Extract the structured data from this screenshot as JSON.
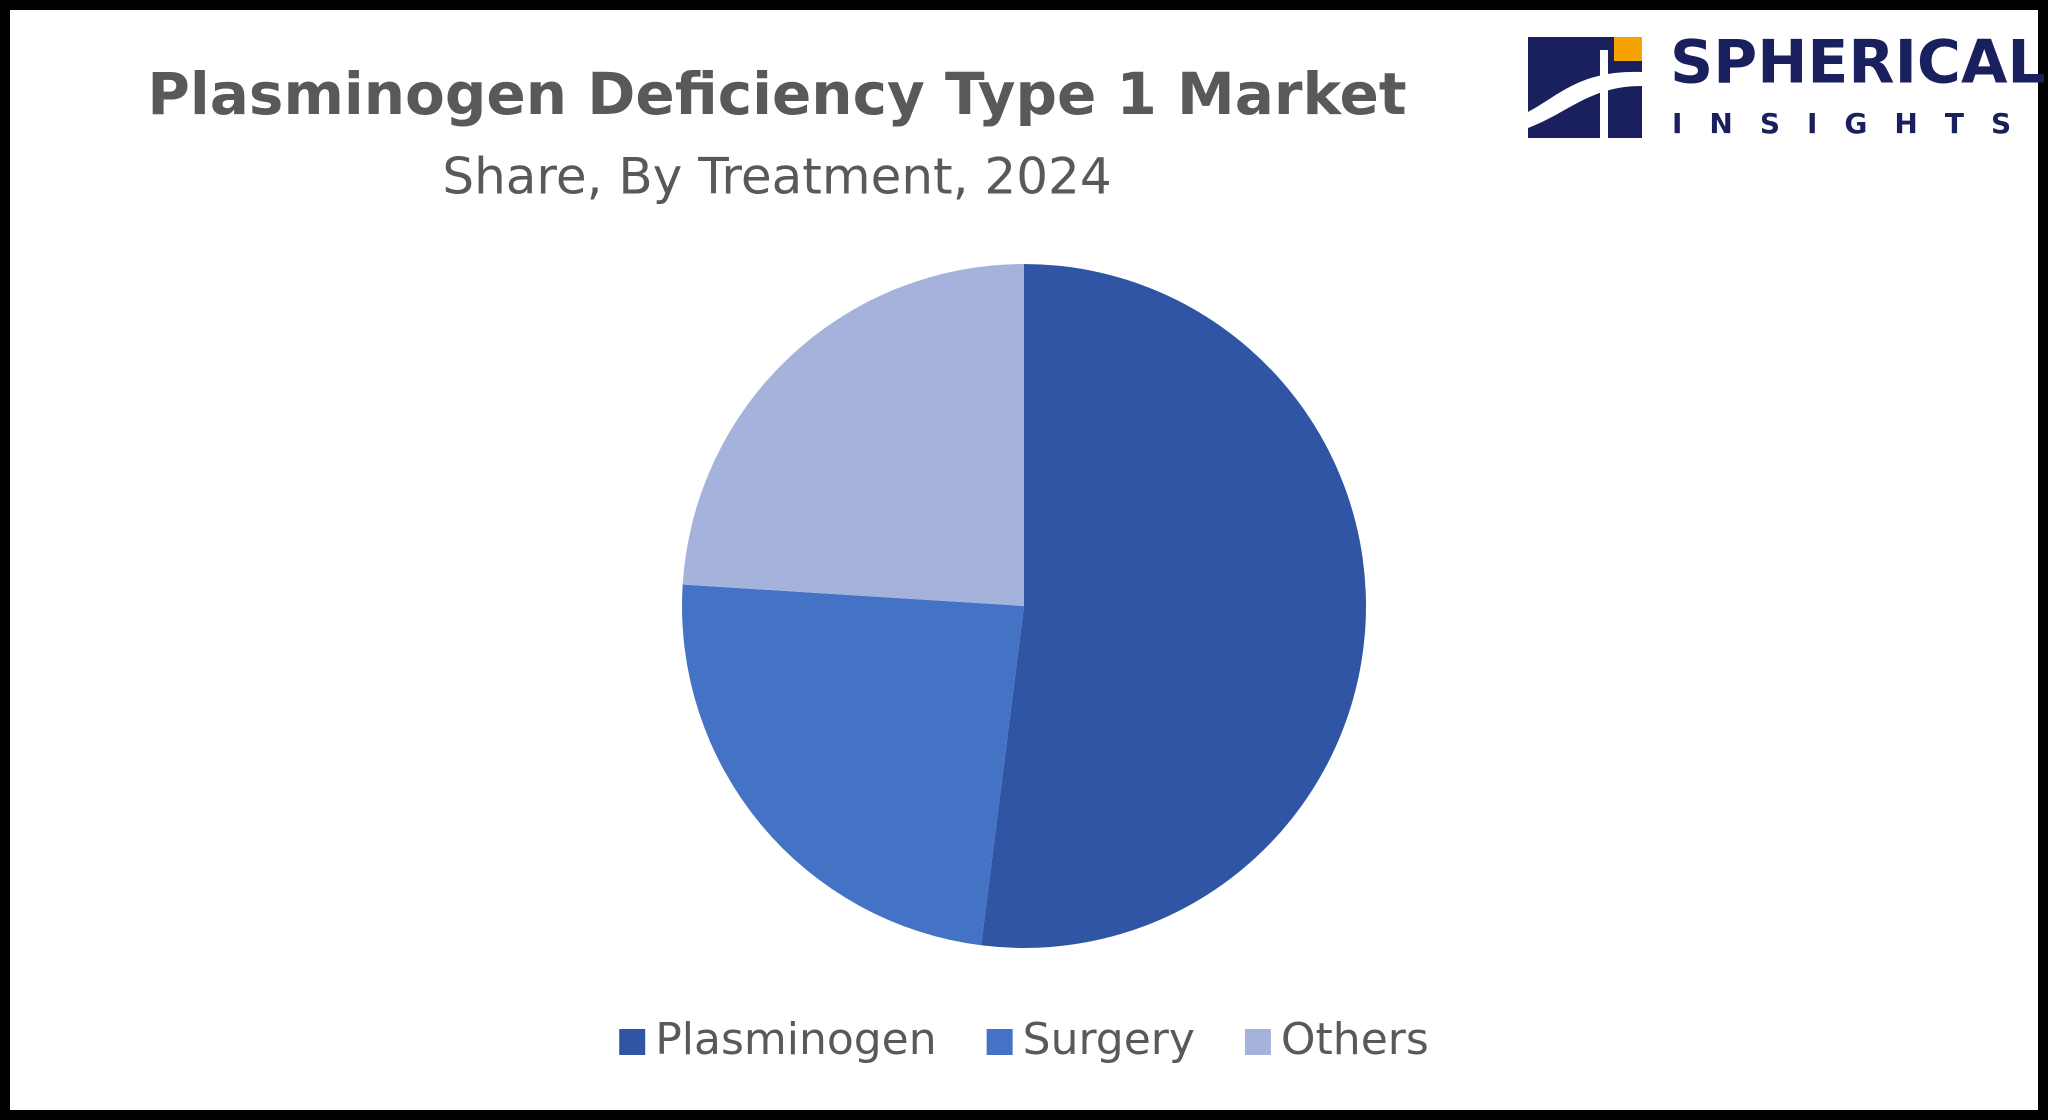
{
  "chart_data": {
    "type": "pie",
    "title": "Plasminogen Deficiency Type 1 Market",
    "subtitle": "Share, By Treatment, 2024",
    "categories": [
      "Plasminogen",
      "Surgery",
      "Others"
    ],
    "values": [
      52,
      24,
      24
    ],
    "colors": [
      "#2f55a4",
      "#4472c4",
      "#a5b3dc"
    ],
    "legend": "bottom"
  },
  "logo": {
    "name": "SPHERICAL",
    "tagline": "INSIGHTS"
  }
}
